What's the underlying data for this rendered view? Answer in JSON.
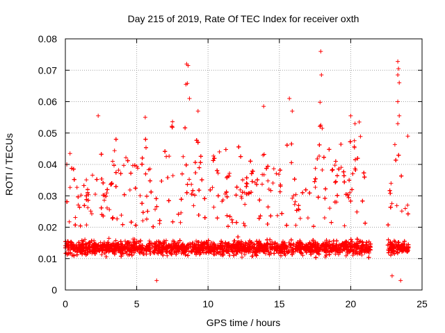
{
  "chart_data": {
    "type": "scatter",
    "title": "Day 215 of 2019, Rate Of TEC Index for receiver oxth",
    "xlabel": "GPS time / hours",
    "ylabel": "ROTI / TECUs",
    "xlim": [
      0,
      25
    ],
    "ylim": [
      0,
      0.08
    ],
    "x_ticks": [
      0,
      5,
      10,
      15,
      20,
      25
    ],
    "x_tick_labels": [
      "0",
      "5",
      "10",
      "15",
      "20",
      "25"
    ],
    "y_ticks": [
      0,
      0.01,
      0.02,
      0.03,
      0.04,
      0.05,
      0.06,
      0.07,
      0.08
    ],
    "y_tick_labels": [
      "0",
      "0.01",
      "0.02",
      "0.03",
      "0.04",
      "0.05",
      "0.06",
      "0.07",
      "0.08"
    ],
    "grid": true,
    "marker": "+",
    "color": "#ff0000",
    "data_gap_hours": [
      21.4,
      22.6
    ],
    "notable_points": [
      {
        "x": 8.5,
        "y": 0.072
      },
      {
        "x": 8.6,
        "y": 0.0715
      },
      {
        "x": 8.45,
        "y": 0.0655
      },
      {
        "x": 8.55,
        "y": 0.0658
      },
      {
        "x": 8.7,
        "y": 0.061
      },
      {
        "x": 9.3,
        "y": 0.057
      },
      {
        "x": 13.9,
        "y": 0.0585
      },
      {
        "x": 15.7,
        "y": 0.061
      },
      {
        "x": 15.9,
        "y": 0.057
      },
      {
        "x": 17.9,
        "y": 0.076
      },
      {
        "x": 17.95,
        "y": 0.0685
      },
      {
        "x": 17.85,
        "y": 0.0598
      },
      {
        "x": 17.9,
        "y": 0.0525
      },
      {
        "x": 18.0,
        "y": 0.0515
      },
      {
        "x": 20.0,
        "y": 0.0555
      },
      {
        "x": 20.3,
        "y": 0.053
      },
      {
        "x": 20.6,
        "y": 0.0535
      },
      {
        "x": 2.3,
        "y": 0.0555
      },
      {
        "x": 5.6,
        "y": 0.055
      },
      {
        "x": 23.3,
        "y": 0.0728
      },
      {
        "x": 23.35,
        "y": 0.0705
      },
      {
        "x": 23.3,
        "y": 0.0685
      },
      {
        "x": 23.4,
        "y": 0.066
      },
      {
        "x": 23.3,
        "y": 0.06
      },
      {
        "x": 23.4,
        "y": 0.0555
      },
      {
        "x": 23.3,
        "y": 0.053
      },
      {
        "x": 0.1,
        "y": 0.04
      },
      {
        "x": 10.8,
        "y": 0.044
      },
      {
        "x": 23.5,
        "y": 0.003
      },
      {
        "x": 6.4,
        "y": 0.003
      },
      {
        "x": 22.9,
        "y": 0.0045
      },
      {
        "x": 24.0,
        "y": 0.049
      }
    ]
  }
}
